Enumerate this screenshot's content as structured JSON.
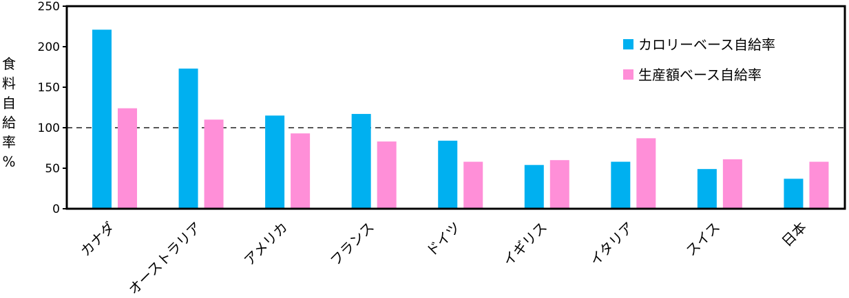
{
  "chart_data": {
    "type": "bar",
    "title": "",
    "xlabel": "",
    "ylabel": "食料自給率%",
    "ylim": [
      0,
      250
    ],
    "yticks": [
      0,
      50,
      100,
      150,
      200,
      250
    ],
    "reference_line": 100,
    "grid": false,
    "legend_position": "top-right",
    "categories": [
      "カナダ",
      "オーストラリア",
      "アメリカ",
      "フランス",
      "ドイツ",
      "イギリス",
      "イタリア",
      "スイス",
      "日本"
    ],
    "series": [
      {
        "name": "カロリーベース自給率",
        "color": "#00b0f0",
        "values": [
          221,
          173,
          115,
          117,
          84,
          54,
          58,
          49,
          37
        ]
      },
      {
        "name": "生産額ベース自給率",
        "color": "#ff8fd8",
        "values": [
          124,
          110,
          93,
          83,
          58,
          60,
          87,
          61,
          58
        ]
      }
    ]
  }
}
